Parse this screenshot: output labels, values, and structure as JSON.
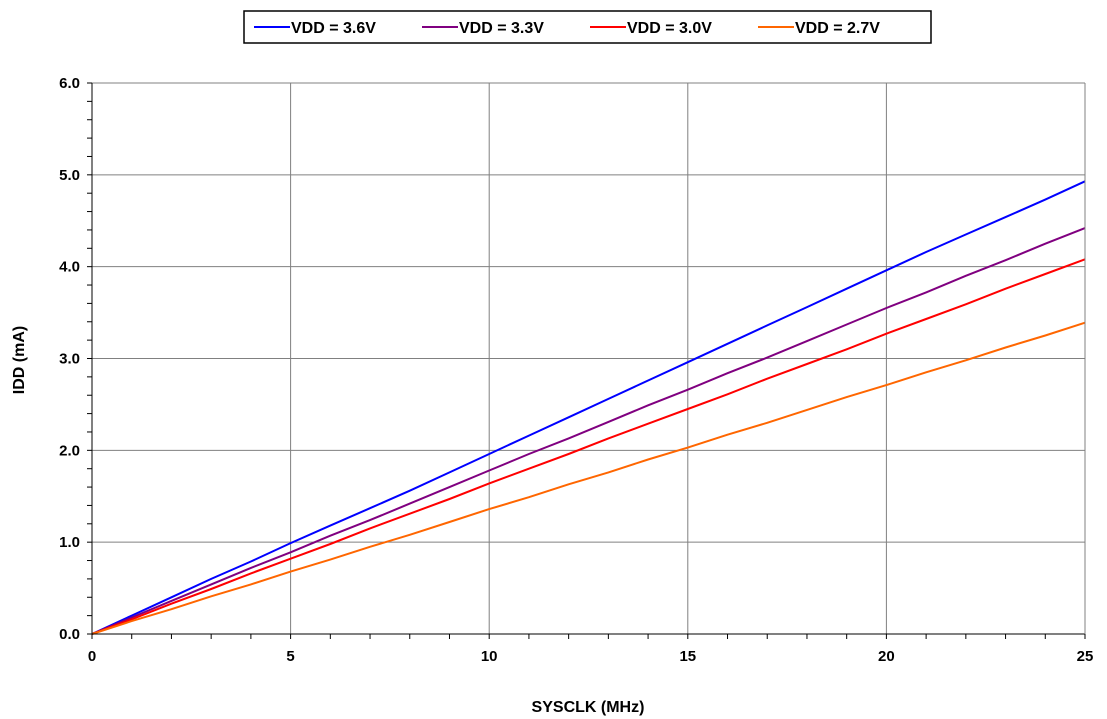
{
  "chart_data": {
    "type": "line",
    "title": "",
    "xlabel": "SYSCLK (MHz)",
    "ylabel": "IDD (mA)",
    "xlim": [
      0,
      25
    ],
    "ylim": [
      0,
      6
    ],
    "x_ticks": [
      "0",
      "5",
      "10",
      "15",
      "20",
      "25"
    ],
    "y_ticks": [
      "0.0",
      "1.0",
      "2.0",
      "3.0",
      "4.0",
      "5.0",
      "6.0"
    ],
    "grid": true,
    "legend_position": "top",
    "series": [
      {
        "name": "VDD = 3.6V",
        "color": "#0000ff",
        "x": [
          0,
          1,
          2,
          3,
          4,
          5,
          6,
          7,
          8,
          9,
          10,
          11,
          12,
          13,
          14,
          15,
          16,
          17,
          18,
          19,
          20,
          21,
          22,
          23,
          24,
          25
        ],
        "y": [
          0,
          0.2,
          0.4,
          0.6,
          0.79,
          0.99,
          1.18,
          1.37,
          1.56,
          1.76,
          1.96,
          2.16,
          2.36,
          2.56,
          2.76,
          2.96,
          3.16,
          3.36,
          3.56,
          3.76,
          3.96,
          4.16,
          4.35,
          4.54,
          4.73,
          4.93
        ]
      },
      {
        "name": "VDD = 3.3V",
        "color": "#800080",
        "x": [
          0,
          1,
          2,
          3,
          4,
          5,
          6,
          7,
          8,
          9,
          10,
          11,
          12,
          13,
          14,
          15,
          16,
          17,
          18,
          19,
          20,
          21,
          22,
          23,
          24,
          25
        ],
        "y": [
          0,
          0.18,
          0.36,
          0.54,
          0.72,
          0.89,
          1.07,
          1.24,
          1.42,
          1.6,
          1.78,
          1.96,
          2.13,
          2.31,
          2.49,
          2.66,
          2.84,
          3.01,
          3.19,
          3.37,
          3.55,
          3.72,
          3.9,
          4.07,
          4.25,
          4.42
        ]
      },
      {
        "name": "VDD = 3.0V",
        "color": "#ff0000",
        "x": [
          0,
          1,
          2,
          3,
          4,
          5,
          6,
          7,
          8,
          9,
          10,
          11,
          12,
          13,
          14,
          15,
          16,
          17,
          18,
          19,
          20,
          21,
          22,
          23,
          24,
          25
        ],
        "y": [
          0,
          0.16,
          0.33,
          0.49,
          0.66,
          0.82,
          0.98,
          1.15,
          1.31,
          1.47,
          1.64,
          1.8,
          1.96,
          2.13,
          2.29,
          2.45,
          2.61,
          2.78,
          2.94,
          3.1,
          3.27,
          3.43,
          3.59,
          3.76,
          3.92,
          4.08
        ]
      },
      {
        "name": "VDD = 2.7V",
        "color": "#ff6600",
        "x": [
          0,
          1,
          2,
          3,
          4,
          5,
          6,
          7,
          8,
          9,
          10,
          11,
          12,
          13,
          14,
          15,
          16,
          17,
          18,
          19,
          20,
          21,
          22,
          23,
          24,
          25
        ],
        "y": [
          0,
          0.14,
          0.27,
          0.41,
          0.54,
          0.68,
          0.81,
          0.95,
          1.08,
          1.22,
          1.36,
          1.49,
          1.63,
          1.76,
          1.9,
          2.03,
          2.17,
          2.3,
          2.44,
          2.58,
          2.71,
          2.85,
          2.98,
          3.12,
          3.25,
          3.39
        ]
      }
    ]
  }
}
